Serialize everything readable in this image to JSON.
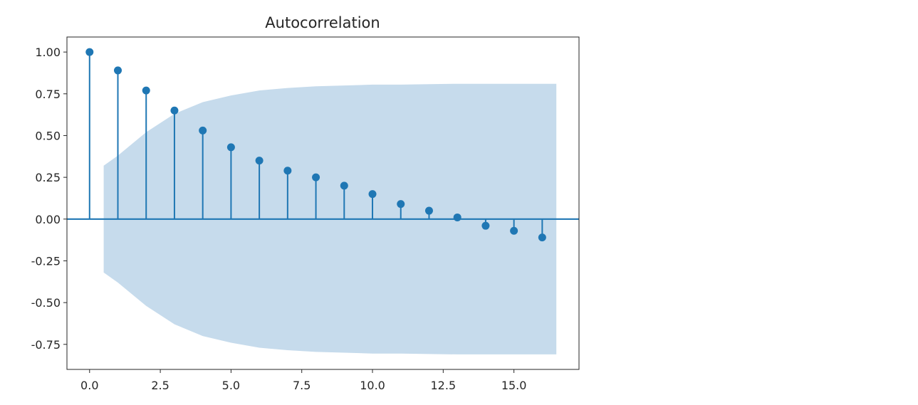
{
  "chart_data": {
    "type": "stem",
    "title": "Autocorrelation",
    "xlabel": "",
    "ylabel": "",
    "xlim": [
      -0.8,
      17.3
    ],
    "ylim": [
      -0.9,
      1.09
    ],
    "x_ticks": [
      "0.0",
      "2.5",
      "5.0",
      "7.5",
      "10.0",
      "12.5",
      "15.0"
    ],
    "x_tick_values": [
      0,
      2.5,
      5,
      7.5,
      10,
      12.5,
      15
    ],
    "y_ticks": [
      "1.00",
      "0.75",
      "0.50",
      "0.25",
      "0.00",
      "-0.25",
      "-0.50",
      "-0.75"
    ],
    "y_tick_values": [
      1.0,
      0.75,
      0.5,
      0.25,
      0.0,
      -0.25,
      -0.5,
      -0.75
    ],
    "lags": [
      0,
      1,
      2,
      3,
      4,
      5,
      6,
      7,
      8,
      9,
      10,
      11,
      12,
      13,
      14,
      15,
      16
    ],
    "values": [
      1.0,
      0.89,
      0.77,
      0.65,
      0.53,
      0.43,
      0.35,
      0.29,
      0.25,
      0.2,
      0.15,
      0.09,
      0.05,
      0.01,
      -0.04,
      -0.07,
      -0.11
    ],
    "confidence_band": {
      "x": [
        0.5,
        1,
        2,
        3,
        4,
        5,
        6,
        7,
        8,
        9,
        10,
        11,
        12,
        13,
        14,
        15,
        16,
        16.5
      ],
      "upper": [
        0.32,
        0.38,
        0.52,
        0.63,
        0.7,
        0.74,
        0.77,
        0.785,
        0.795,
        0.8,
        0.805,
        0.805,
        0.808,
        0.81,
        0.81,
        0.81,
        0.81,
        0.81
      ]
    },
    "zero_line": true,
    "grid": false,
    "legend": "none",
    "colors": {
      "marker": "#1f77b4",
      "band": "#c6dbec",
      "axes": "#262626"
    }
  }
}
